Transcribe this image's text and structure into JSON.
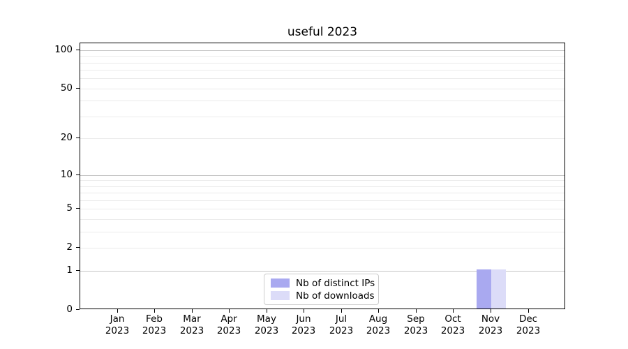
{
  "chart_data": {
    "type": "bar",
    "title": "useful 2023",
    "categories": [
      "Jan\n2023",
      "Feb\n2023",
      "Mar\n2023",
      "Apr\n2023",
      "May\n2023",
      "Jun\n2023",
      "Jul\n2023",
      "Aug\n2023",
      "Sep\n2023",
      "Oct\n2023",
      "Nov\n2023",
      "Dec\n2023"
    ],
    "series": [
      {
        "name": "Nb of distinct IPs",
        "color": "#a9a9f0",
        "values": [
          0,
          0,
          0,
          0,
          0,
          0,
          0,
          0,
          0,
          0,
          1,
          0
        ]
      },
      {
        "name": "Nb of downloads",
        "color": "#dcdcf8",
        "values": [
          0,
          0,
          0,
          0,
          0,
          0,
          0,
          0,
          0,
          0,
          1,
          0
        ]
      }
    ],
    "y_scale": "log1p",
    "ylim": [
      0,
      113
    ],
    "y_ticks": [
      0,
      1,
      2,
      5,
      10,
      20,
      50,
      100
    ],
    "grid_major": [
      1,
      10,
      100
    ],
    "grid_minor": [
      2,
      3,
      4,
      5,
      6,
      7,
      8,
      9,
      20,
      30,
      40,
      50,
      60,
      70,
      80,
      90
    ],
    "legend_position": "lower center",
    "colors": {
      "grid_major": "#c4c4c4",
      "grid_minor": "#ebebeb",
      "spine": "#000000"
    }
  }
}
